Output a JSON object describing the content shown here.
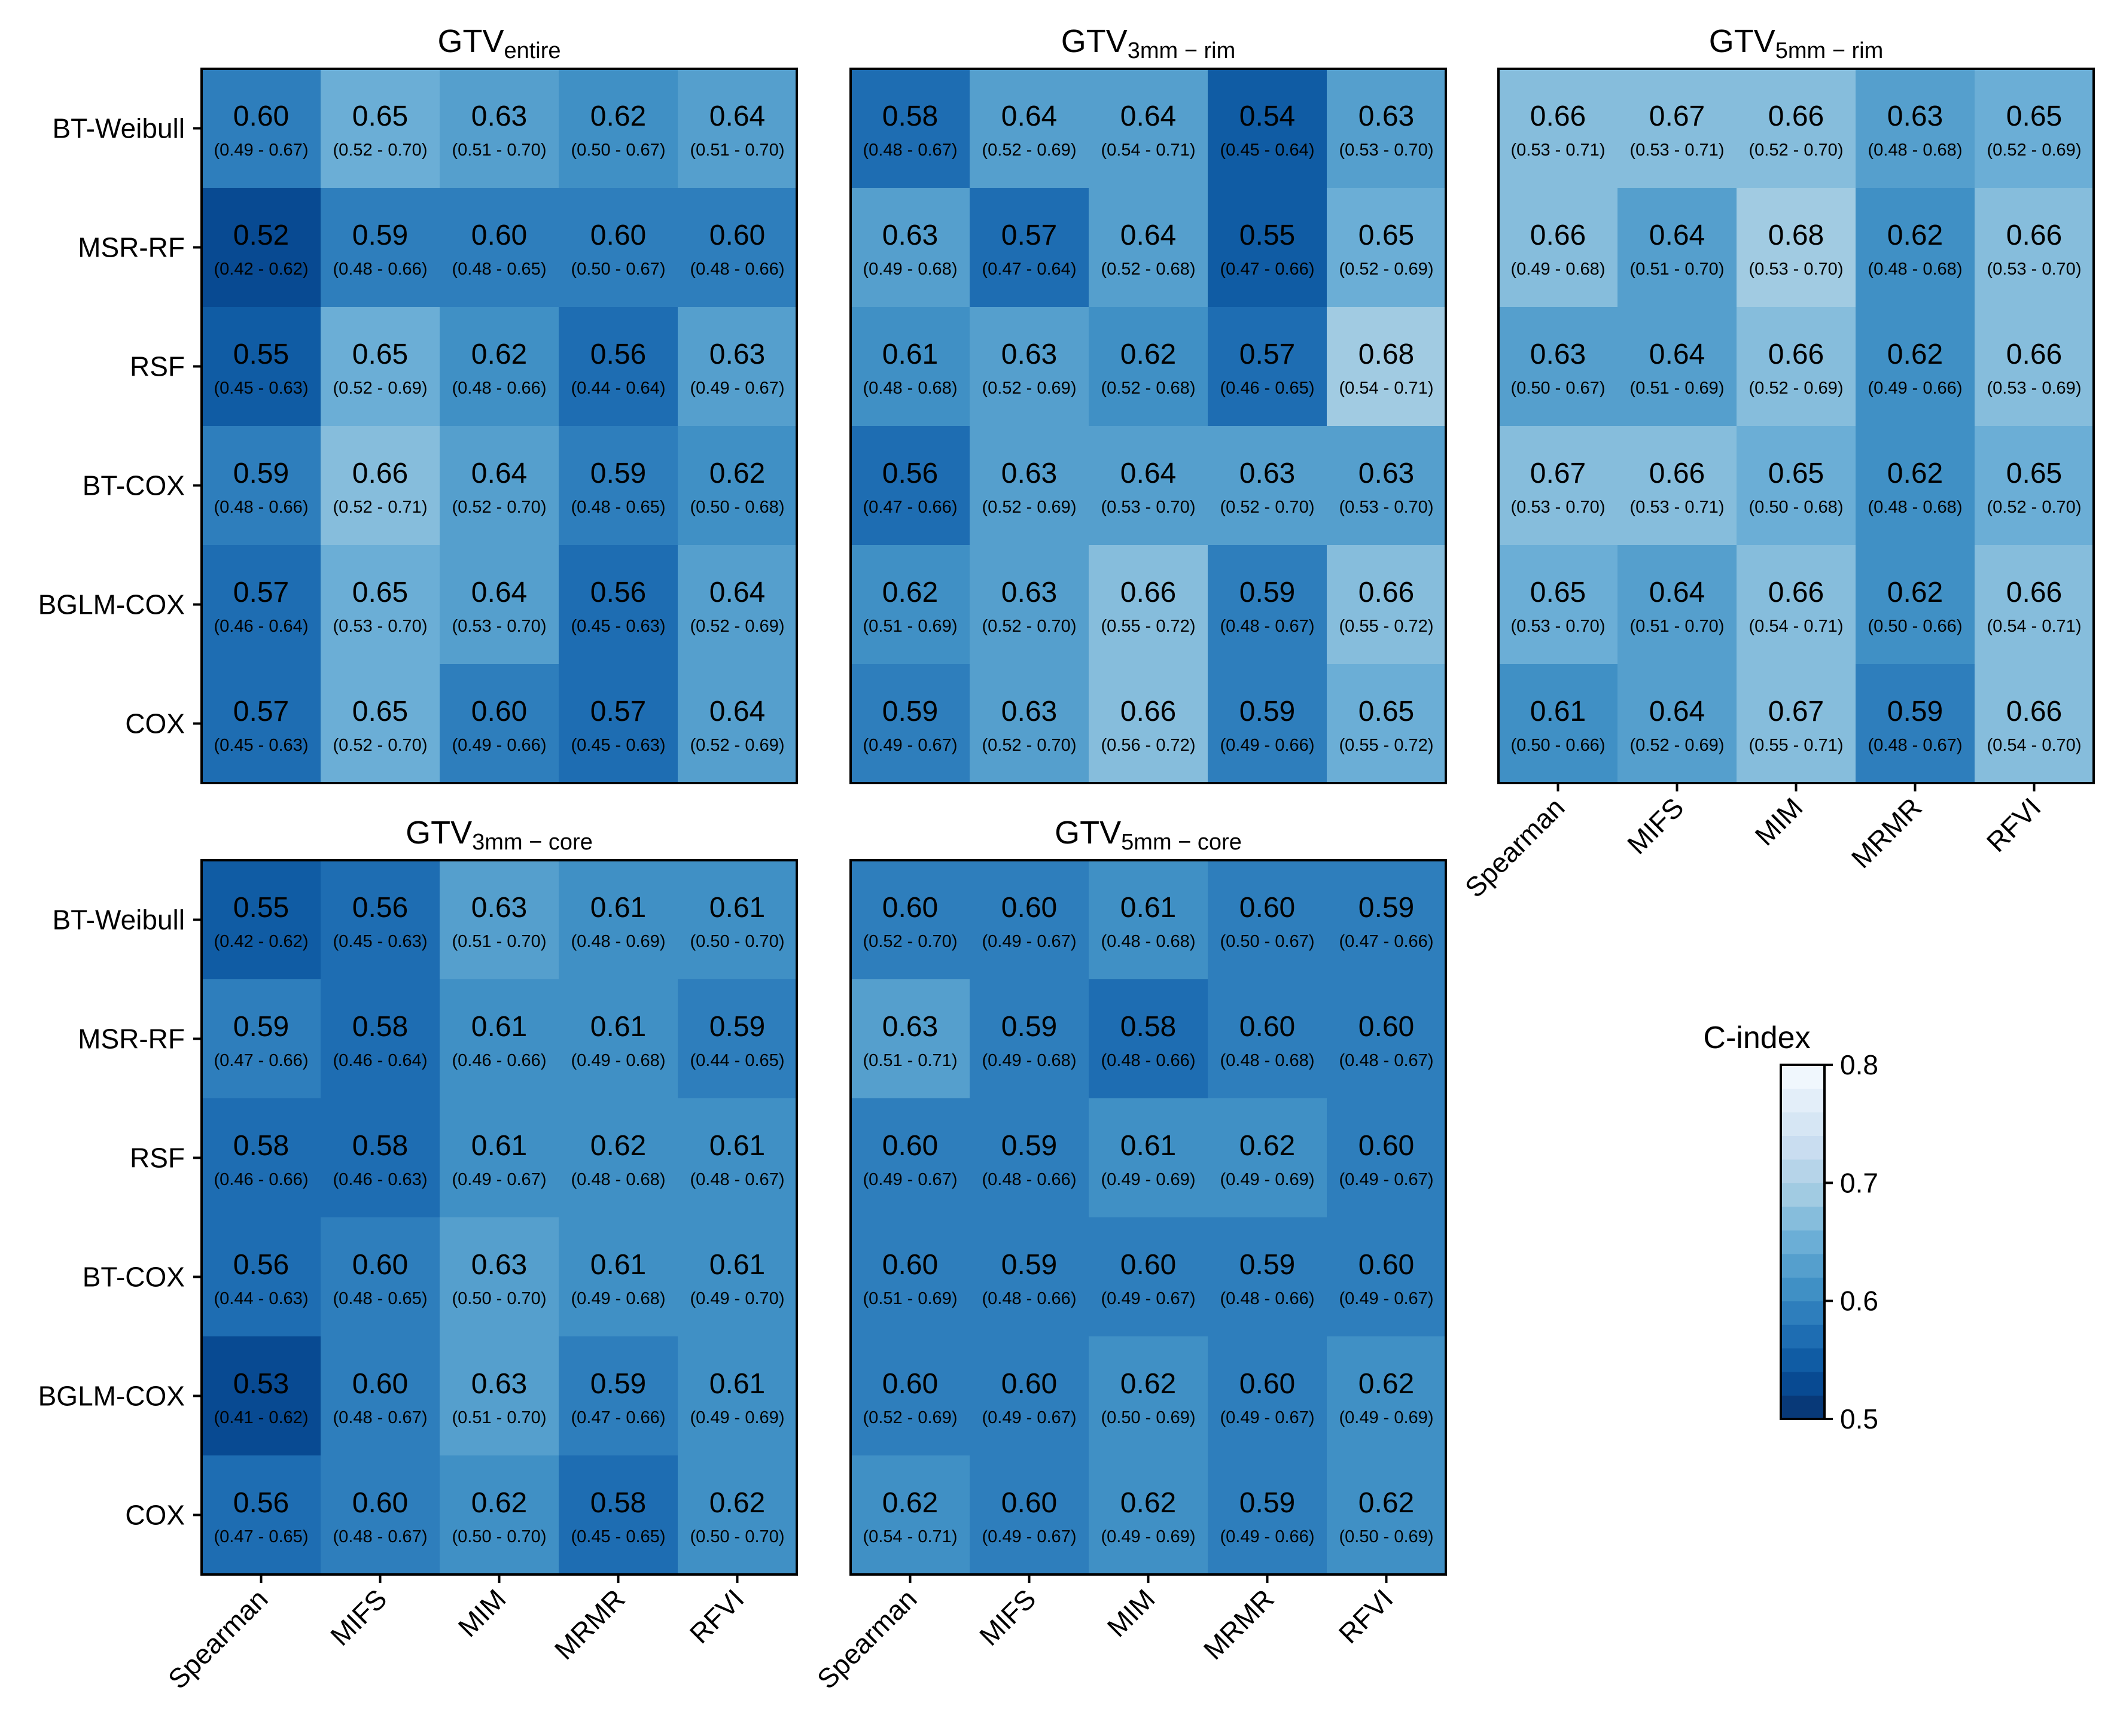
{
  "chart_data": {
    "type": "heatmap",
    "rows": [
      "BT-Weibull",
      "MSR-RF",
      "RSF",
      "BT-COX",
      "BGLM-COX",
      "COX"
    ],
    "columns": [
      "Spearman",
      "MIFS",
      "MIM",
      "MRMR",
      "RFVI"
    ],
    "colorbar": {
      "label": "C-index",
      "range": [
        0.5,
        0.8
      ],
      "ticks": [
        "0.5",
        "0.6",
        "0.7",
        "0.8"
      ],
      "scheme": "Blues (reversed)"
    },
    "panels": [
      {
        "title_main": "GTV",
        "title_sub": "entire",
        "values": [
          [
            0.6,
            0.65,
            0.63,
            0.62,
            0.64
          ],
          [
            0.52,
            0.59,
            0.6,
            0.6,
            0.6
          ],
          [
            0.55,
            0.65,
            0.62,
            0.56,
            0.63
          ],
          [
            0.59,
            0.66,
            0.64,
            0.59,
            0.62
          ],
          [
            0.57,
            0.65,
            0.64,
            0.56,
            0.64
          ],
          [
            0.57,
            0.65,
            0.6,
            0.57,
            0.64
          ]
        ],
        "ci": [
          [
            "(0.49 - 0.67)",
            "(0.52 - 0.70)",
            "(0.51 - 0.70)",
            "(0.50 - 0.67)",
            "(0.51 - 0.70)"
          ],
          [
            "(0.42 - 0.62)",
            "(0.48 - 0.66)",
            "(0.48 - 0.65)",
            "(0.50 - 0.67)",
            "(0.48 - 0.66)"
          ],
          [
            "(0.45 - 0.63)",
            "(0.52 - 0.69)",
            "(0.48 - 0.66)",
            "(0.44 - 0.64)",
            "(0.49 - 0.67)"
          ],
          [
            "(0.48 - 0.66)",
            "(0.52 - 0.71)",
            "(0.52 - 0.70)",
            "(0.48 - 0.65)",
            "(0.50 - 0.68)"
          ],
          [
            "(0.46 - 0.64)",
            "(0.53 - 0.70)",
            "(0.53 - 0.70)",
            "(0.45 - 0.63)",
            "(0.52 - 0.69)"
          ],
          [
            "(0.45 - 0.63)",
            "(0.52 - 0.70)",
            "(0.49 - 0.66)",
            "(0.45 - 0.63)",
            "(0.52 - 0.69)"
          ]
        ]
      },
      {
        "title_main": "GTV",
        "title_sub": "3mm − rim",
        "values": [
          [
            0.58,
            0.64,
            0.64,
            0.54,
            0.63
          ],
          [
            0.63,
            0.57,
            0.64,
            0.55,
            0.65
          ],
          [
            0.61,
            0.63,
            0.62,
            0.57,
            0.68
          ],
          [
            0.56,
            0.63,
            0.64,
            0.63,
            0.63
          ],
          [
            0.62,
            0.63,
            0.66,
            0.59,
            0.66
          ],
          [
            0.59,
            0.63,
            0.66,
            0.59,
            0.65
          ]
        ],
        "ci": [
          [
            "(0.48 - 0.67)",
            "(0.52 - 0.69)",
            "(0.54 - 0.71)",
            "(0.45 - 0.64)",
            "(0.53 - 0.70)"
          ],
          [
            "(0.49 - 0.68)",
            "(0.47 - 0.64)",
            "(0.52 - 0.68)",
            "(0.47 - 0.66)",
            "(0.52 - 0.69)"
          ],
          [
            "(0.48 - 0.68)",
            "(0.52 - 0.69)",
            "(0.52 - 0.68)",
            "(0.46 - 0.65)",
            "(0.54 - 0.71)"
          ],
          [
            "(0.47 - 0.66)",
            "(0.52 - 0.69)",
            "(0.53 - 0.70)",
            "(0.52 - 0.70)",
            "(0.53 - 0.70)"
          ],
          [
            "(0.51 - 0.69)",
            "(0.52 - 0.70)",
            "(0.55 - 0.72)",
            "(0.48 - 0.67)",
            "(0.55 - 0.72)"
          ],
          [
            "(0.49 - 0.67)",
            "(0.52 - 0.70)",
            "(0.56 - 0.72)",
            "(0.49 - 0.66)",
            "(0.55 - 0.72)"
          ]
        ]
      },
      {
        "title_main": "GTV",
        "title_sub": "5mm − rim",
        "values": [
          [
            0.66,
            0.67,
            0.66,
            0.63,
            0.65
          ],
          [
            0.66,
            0.64,
            0.68,
            0.62,
            0.66
          ],
          [
            0.63,
            0.64,
            0.66,
            0.62,
            0.66
          ],
          [
            0.67,
            0.66,
            0.65,
            0.62,
            0.65
          ],
          [
            0.65,
            0.64,
            0.66,
            0.62,
            0.66
          ],
          [
            0.61,
            0.64,
            0.67,
            0.59,
            0.66
          ]
        ],
        "ci": [
          [
            "(0.53 - 0.71)",
            "(0.53 - 0.71)",
            "(0.52 - 0.70)",
            "(0.48 - 0.68)",
            "(0.52 - 0.69)"
          ],
          [
            "(0.49 - 0.68)",
            "(0.51 - 0.70)",
            "(0.53 - 0.70)",
            "(0.48 - 0.68)",
            "(0.53 - 0.70)"
          ],
          [
            "(0.50 - 0.67)",
            "(0.51 - 0.69)",
            "(0.52 - 0.69)",
            "(0.49 - 0.66)",
            "(0.53 - 0.69)"
          ],
          [
            "(0.53 - 0.70)",
            "(0.53 - 0.71)",
            "(0.50 - 0.68)",
            "(0.48 - 0.68)",
            "(0.52 - 0.70)"
          ],
          [
            "(0.53 - 0.70)",
            "(0.51 - 0.70)",
            "(0.54 - 0.71)",
            "(0.50 - 0.66)",
            "(0.54 - 0.71)"
          ],
          [
            "(0.50 - 0.66)",
            "(0.52 - 0.69)",
            "(0.55 - 0.71)",
            "(0.48 - 0.67)",
            "(0.54 - 0.70)"
          ]
        ]
      },
      {
        "title_main": "GTV",
        "title_sub": "3mm − core",
        "values": [
          [
            0.55,
            0.56,
            0.63,
            0.61,
            0.61
          ],
          [
            0.59,
            0.58,
            0.61,
            0.61,
            0.59
          ],
          [
            0.58,
            0.58,
            0.61,
            0.62,
            0.61
          ],
          [
            0.56,
            0.6,
            0.63,
            0.61,
            0.61
          ],
          [
            0.53,
            0.6,
            0.63,
            0.59,
            0.61
          ],
          [
            0.56,
            0.6,
            0.62,
            0.58,
            0.62
          ]
        ],
        "ci": [
          [
            "(0.42 - 0.62)",
            "(0.45 - 0.63)",
            "(0.51 - 0.70)",
            "(0.48 - 0.69)",
            "(0.50 - 0.70)"
          ],
          [
            "(0.47 - 0.66)",
            "(0.46 - 0.64)",
            "(0.46 - 0.66)",
            "(0.49 - 0.68)",
            "(0.44 - 0.65)"
          ],
          [
            "(0.46 - 0.66)",
            "(0.46 - 0.63)",
            "(0.49 - 0.67)",
            "(0.48 - 0.68)",
            "(0.48 - 0.67)"
          ],
          [
            "(0.44 - 0.63)",
            "(0.48 - 0.65)",
            "(0.50 - 0.70)",
            "(0.49 - 0.68)",
            "(0.49 - 0.70)"
          ],
          [
            "(0.41 - 0.62)",
            "(0.48 - 0.67)",
            "(0.51 - 0.70)",
            "(0.47 - 0.66)",
            "(0.49 - 0.69)"
          ],
          [
            "(0.47 - 0.65)",
            "(0.48 - 0.67)",
            "(0.50 - 0.70)",
            "(0.45 - 0.65)",
            "(0.50 - 0.70)"
          ]
        ]
      },
      {
        "title_main": "GTV",
        "title_sub": "5mm − core",
        "values": [
          [
            0.6,
            0.6,
            0.61,
            0.6,
            0.59
          ],
          [
            0.63,
            0.59,
            0.58,
            0.6,
            0.6
          ],
          [
            0.6,
            0.59,
            0.61,
            0.62,
            0.6
          ],
          [
            0.6,
            0.59,
            0.6,
            0.59,
            0.6
          ],
          [
            0.6,
            0.6,
            0.62,
            0.6,
            0.62
          ],
          [
            0.62,
            0.6,
            0.62,
            0.59,
            0.62
          ]
        ],
        "ci": [
          [
            "(0.52 - 0.70)",
            "(0.49 - 0.67)",
            "(0.48 - 0.68)",
            "(0.50 - 0.67)",
            "(0.47 - 0.66)"
          ],
          [
            "(0.51 - 0.71)",
            "(0.49 - 0.68)",
            "(0.48 - 0.66)",
            "(0.48 - 0.68)",
            "(0.48 - 0.67)"
          ],
          [
            "(0.49 - 0.67)",
            "(0.48 - 0.66)",
            "(0.49 - 0.69)",
            "(0.49 - 0.69)",
            "(0.49 - 0.67)"
          ],
          [
            "(0.51 - 0.69)",
            "(0.48 - 0.66)",
            "(0.49 - 0.67)",
            "(0.48 - 0.66)",
            "(0.49 - 0.67)"
          ],
          [
            "(0.52 - 0.69)",
            "(0.49 - 0.67)",
            "(0.50 - 0.69)",
            "(0.49 - 0.67)",
            "(0.49 - 0.69)"
          ],
          [
            "(0.54 - 0.71)",
            "(0.49 - 0.67)",
            "(0.49 - 0.69)",
            "(0.49 - 0.66)",
            "(0.50 - 0.69)"
          ]
        ]
      }
    ]
  }
}
